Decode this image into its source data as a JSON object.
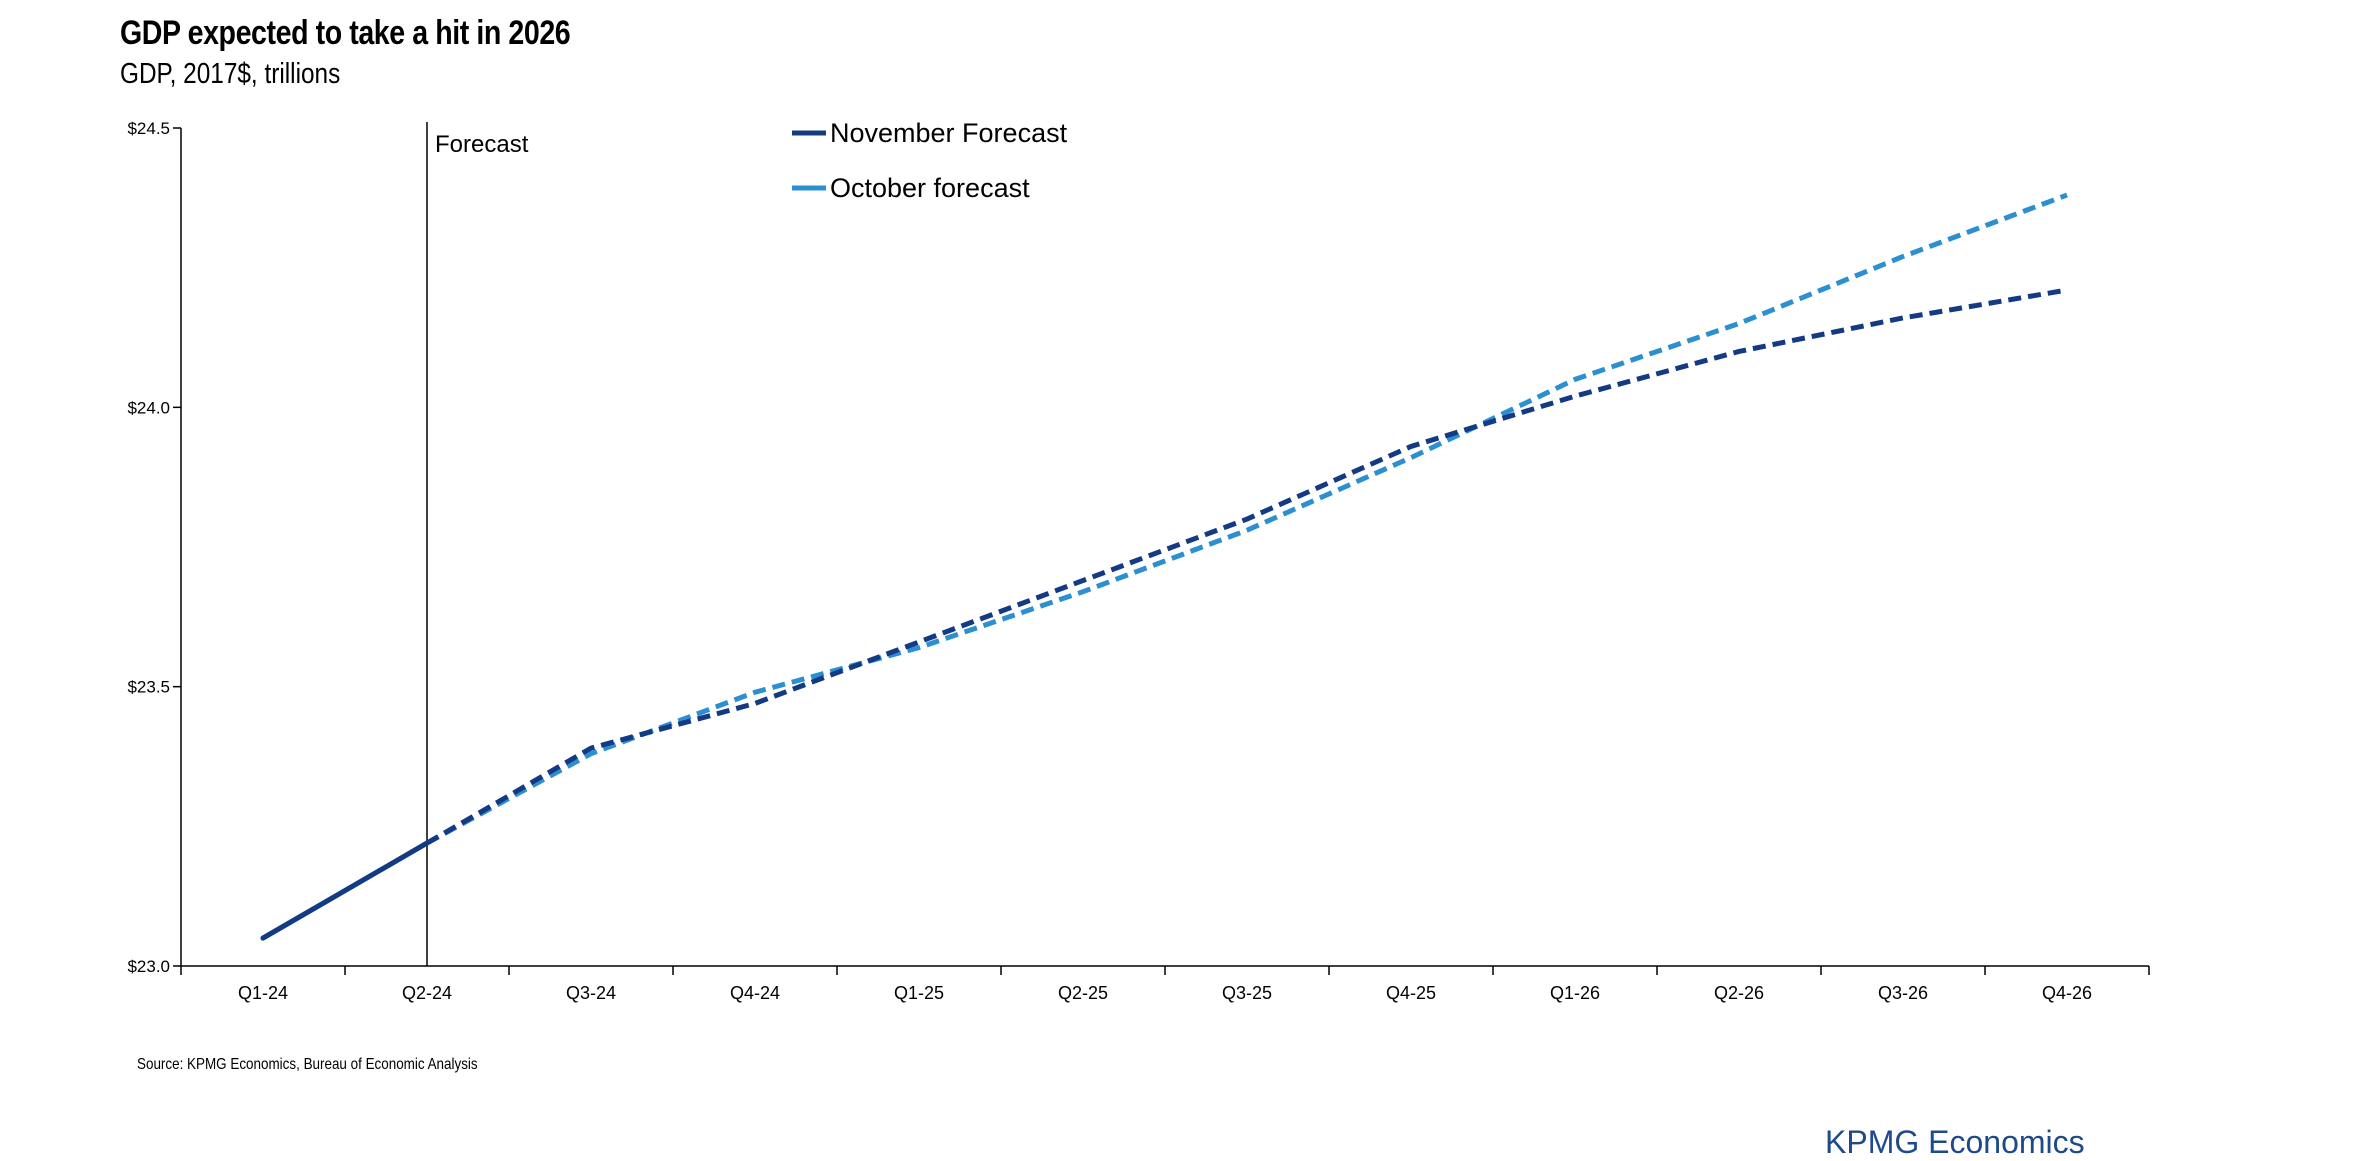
{
  "chart_data": {
    "type": "line",
    "title": "GDP expected to take a hit in 2026",
    "subtitle": "GDP, 2017$, trillions",
    "categories": [
      "Q1-24",
      "Q2-24",
      "Q3-24",
      "Q4-24",
      "Q1-25",
      "Q2-25",
      "Q3-25",
      "Q4-25",
      "Q1-26",
      "Q2-26",
      "Q3-26",
      "Q4-26"
    ],
    "y_ticks": [
      "$23.0",
      "$23.5",
      "$24.0",
      "$24.5"
    ],
    "ylim": [
      23.0,
      24.5
    ],
    "forecast_marker": {
      "label": "Forecast",
      "at": "Q2-24"
    },
    "series": [
      {
        "name": "November Forecast",
        "color": "#143a84",
        "values": [
          23.05,
          23.22,
          23.39,
          23.47,
          23.58,
          23.69,
          23.8,
          23.93,
          24.02,
          24.1,
          24.16,
          24.21
        ],
        "actual_through": "Q2-24"
      },
      {
        "name": "October forecast",
        "color": "#2b8fd0",
        "values": [
          23.05,
          23.22,
          23.38,
          23.49,
          23.57,
          23.67,
          23.78,
          23.91,
          24.05,
          24.15,
          24.27,
          24.38
        ],
        "actual_through": "Q2-24"
      }
    ],
    "grid": false,
    "legend_position": "top-center"
  },
  "source_note": "Source: KPMG Economics, Bureau of Economic Analysis",
  "brand": "KPMG Economics"
}
